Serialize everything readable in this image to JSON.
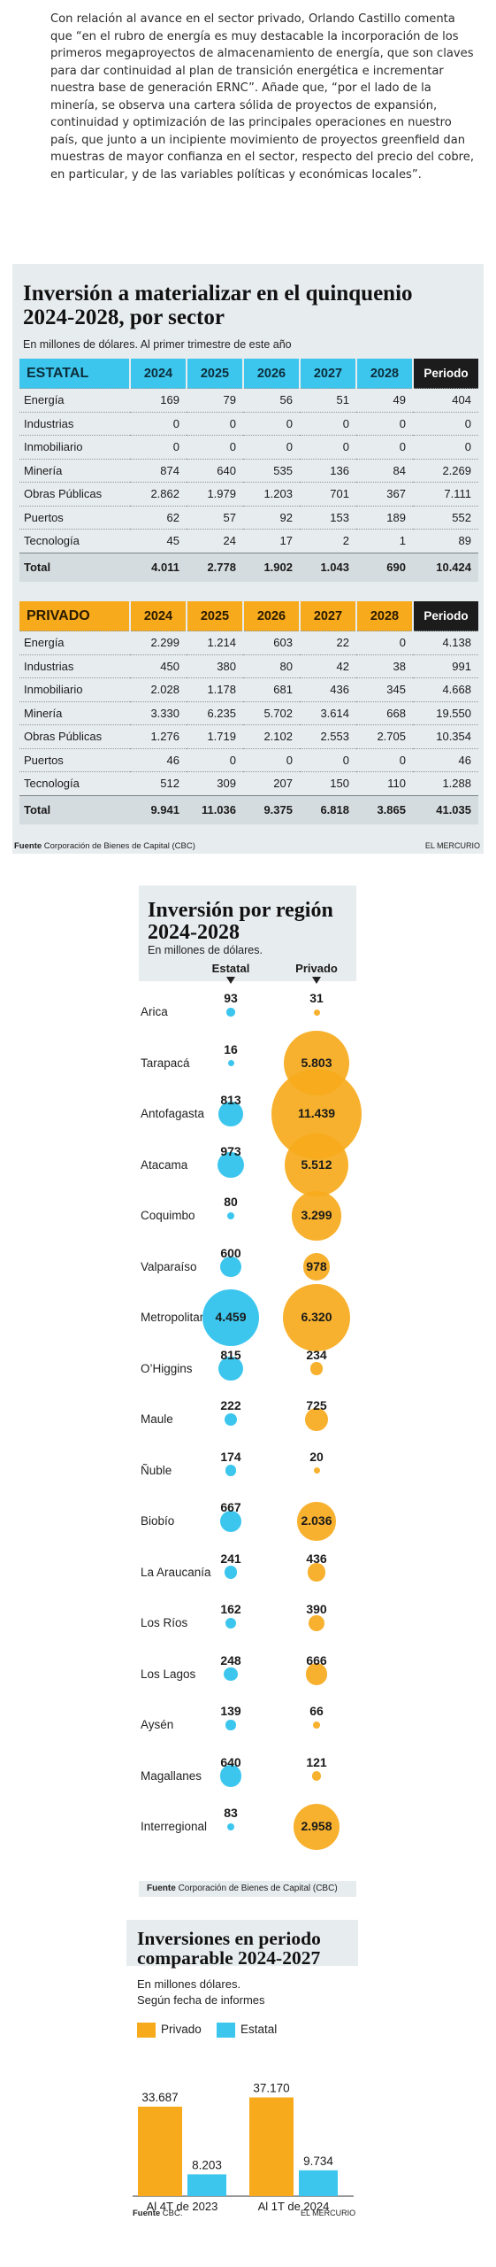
{
  "intro": "Con relación al avance en el sector privado, Orlando Castillo comenta que “en el rubro de energía es muy destacable la incorporación de los primeros megaproyectos de almacenamiento de energía, que son claves para dar continuidad al plan de transición energética e incrementar nuestra base de generación ERNC”. Añade que, “por el lado de la minería, se observa una cartera sólida de proyectos de expansión, continuidad y optimización de las principales operaciones en nuestro país, que junto a un incipiente movimiento de proyectos greenfield dan muestras de mayor confianza en el sector, respecto del precio del cobre, en particular, y de las variables políticas y económicas locales”.",
  "colors": {
    "estatal": "#3cc6ee",
    "privado": "#f6aa1c",
    "panel": "#e7ecee",
    "dark": "#1c1c1c"
  },
  "sector_table": {
    "title": "Inversión a materializar en el quinquenio 2024-2028, por sector",
    "subtitle": "En millones de dólares. Al primer trimestre de este año",
    "years": [
      "2024",
      "2025",
      "2026",
      "2027",
      "2028"
    ],
    "period_label": "Periodo",
    "estatal": {
      "label": "ESTATAL",
      "rows": [
        [
          "Energía",
          "169",
          "79",
          "56",
          "51",
          "49",
          "404"
        ],
        [
          "Industrias",
          "0",
          "0",
          "0",
          "0",
          "0",
          "0"
        ],
        [
          "Inmobiliario",
          "0",
          "0",
          "0",
          "0",
          "0",
          "0"
        ],
        [
          "Minería",
          "874",
          "640",
          "535",
          "136",
          "84",
          "2.269"
        ],
        [
          "Obras Públicas",
          "2.862",
          "1.979",
          "1.203",
          "701",
          "367",
          "7.111"
        ],
        [
          "Puertos",
          "62",
          "57",
          "92",
          "153",
          "189",
          "552"
        ],
        [
          "Tecnología",
          "45",
          "24",
          "17",
          "2",
          "1",
          "89"
        ]
      ],
      "total": [
        "Total",
        "4.011",
        "2.778",
        "1.902",
        "1.043",
        "690",
        "10.424"
      ]
    },
    "privado": {
      "label": "PRIVADO",
      "rows": [
        [
          "Energía",
          "2.299",
          "1.214",
          "603",
          "22",
          "0",
          "4.138"
        ],
        [
          "Industrias",
          "450",
          "380",
          "80",
          "42",
          "38",
          "991"
        ],
        [
          "Inmobiliario",
          "2.028",
          "1.178",
          "681",
          "436",
          "345",
          "4.668"
        ],
        [
          "Minería",
          "3.330",
          "6.235",
          "5.702",
          "3.614",
          "668",
          "19.550"
        ],
        [
          "Obras Públicas",
          "1.276",
          "1.719",
          "2.102",
          "2.553",
          "2.705",
          "10.354"
        ],
        [
          "Puertos",
          "46",
          "0",
          "0",
          "0",
          "0",
          "46"
        ],
        [
          "Tecnología",
          "512",
          "309",
          "207",
          "150",
          "110",
          "1.288"
        ]
      ],
      "total": [
        "Total",
        "9.941",
        "11.036",
        "9.375",
        "6.818",
        "3.865",
        "41.035"
      ]
    },
    "source_label": "Fuente",
    "source_text": "Corporación de Bienes de Capital (CBC)",
    "brand": "EL MERCURIO"
  },
  "region_chart": {
    "title": "Inversión por región 2024-2028",
    "subtitle": "En millones de dólares.",
    "col_estatal": "Estatal",
    "col_privado": "Privado",
    "regions": [
      {
        "name": "Arica",
        "estatal": 93,
        "privado": 31,
        "estatal_label": "93",
        "privado_label": "31"
      },
      {
        "name": "Tarapacá",
        "estatal": 16,
        "privado": 5803,
        "estatal_label": "16",
        "privado_label": "5.803"
      },
      {
        "name": "Antofagasta",
        "estatal": 813,
        "privado": 11439,
        "estatal_label": "813",
        "privado_label": "11.439"
      },
      {
        "name": "Atacama",
        "estatal": 973,
        "privado": 5512,
        "estatal_label": "973",
        "privado_label": "5.512"
      },
      {
        "name": "Coquimbo",
        "estatal": 80,
        "privado": 3299,
        "estatal_label": "80",
        "privado_label": "3.299"
      },
      {
        "name": "Valparaíso",
        "estatal": 600,
        "privado": 978,
        "estatal_label": "600",
        "privado_label": "978"
      },
      {
        "name": "Metropolitana",
        "estatal": 4459,
        "privado": 6320,
        "estatal_label": "4.459",
        "privado_label": "6.320"
      },
      {
        "name": "O’Higgins",
        "estatal": 815,
        "privado": 234,
        "estatal_label": "815",
        "privado_label": "234"
      },
      {
        "name": "Maule",
        "estatal": 222,
        "privado": 725,
        "estatal_label": "222",
        "privado_label": "725"
      },
      {
        "name": "Ñuble",
        "estatal": 174,
        "privado": 20,
        "estatal_label": "174",
        "privado_label": "20"
      },
      {
        "name": "Biobío",
        "estatal": 667,
        "privado": 2036,
        "estatal_label": "667",
        "privado_label": "2.036"
      },
      {
        "name": "La Araucanía",
        "estatal": 241,
        "privado": 436,
        "estatal_label": "241",
        "privado_label": "436"
      },
      {
        "name": "Los Ríos",
        "estatal": 162,
        "privado": 390,
        "estatal_label": "162",
        "privado_label": "390"
      },
      {
        "name": "Los Lagos",
        "estatal": 248,
        "privado": 666,
        "estatal_label": "248",
        "privado_label": "666"
      },
      {
        "name": "Aysén",
        "estatal": 139,
        "privado": 66,
        "estatal_label": "139",
        "privado_label": "66"
      },
      {
        "name": "Magallanes",
        "estatal": 640,
        "privado": 121,
        "estatal_label": "640",
        "privado_label": "121"
      },
      {
        "name": "Interregional",
        "estatal": 83,
        "privado": 2958,
        "estatal_label": "83",
        "privado_label": "2.958"
      }
    ],
    "source_label": "Fuente",
    "source_text": "Corporación de Bienes de Capital (CBC)"
  },
  "chart_data": {
    "type": "bar",
    "title": "Inversiones en periodo comparable 2024-2027",
    "subtitle_1": "En millones dólares.",
    "subtitle_2": "Según fecha de informes",
    "categories": [
      "Al 4T de 2023",
      "Al 1T de 2024"
    ],
    "series": [
      {
        "name": "Privado",
        "values": [
          33687,
          37170
        ],
        "labels": [
          "33.687",
          "37.170"
        ],
        "color": "#f6aa1c"
      },
      {
        "name": "Estatal",
        "values": [
          8203,
          9734
        ],
        "labels": [
          "8.203",
          "9.734"
        ],
        "color": "#3cc6ee"
      }
    ],
    "ylim": [
      0,
      40000
    ],
    "grid": false,
    "legend": "top-left",
    "source_label": "Fuente",
    "source_text": "CBC.",
    "brand": "EL MERCURIO"
  }
}
